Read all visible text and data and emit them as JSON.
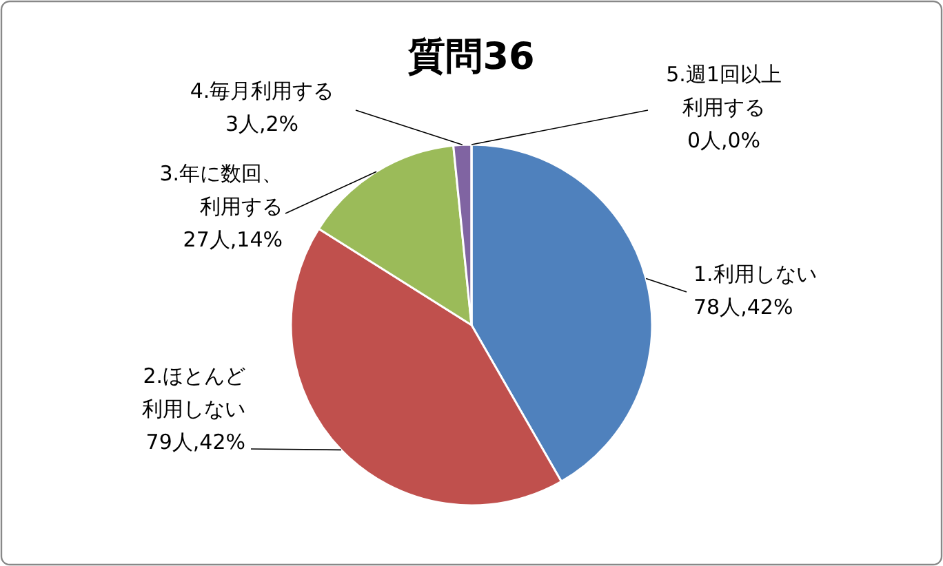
{
  "chart_data": {
    "type": "pie",
    "title": "質問36",
    "categories": [
      "1.利用しない",
      "2.ほとんど利用しない",
      "3.年に数回、利用する",
      "4.毎月利用する",
      "5.週1回以上利用する"
    ],
    "values": [
      78,
      79,
      27,
      3,
      0
    ],
    "value_labels": [
      "78人,42%",
      "79人,42%",
      "27人,14%",
      "3人,2%",
      "0人,0%"
    ],
    "colors": [
      "#4f81bd",
      "#c0504d",
      "#9bbb59",
      "#8064a2",
      "#4bacc6"
    ]
  }
}
